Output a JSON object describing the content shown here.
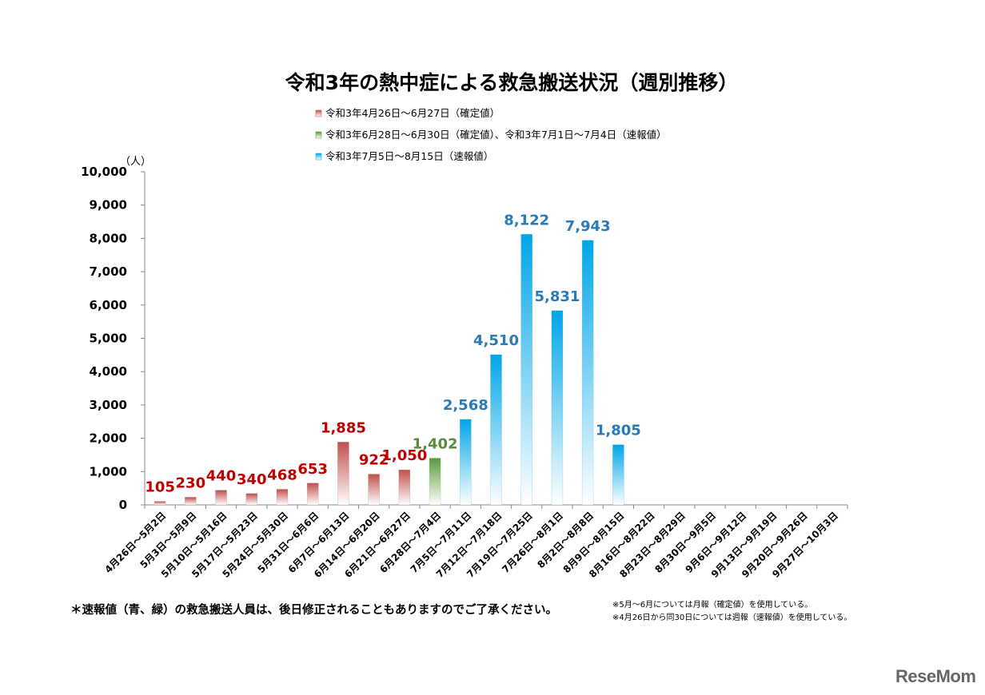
{
  "colors": {
    "kakutei": "#c0504d",
    "kakutei_label": "#c00000",
    "mixed": "#5a9a3a",
    "mixed_label": "#5a8a3a",
    "sokuhou": "#00a5e8",
    "sokuhou_label": "#2a7ab8"
  },
  "chart_data": {
    "type": "bar",
    "title": "令和3年の熱中症による救急搬送状況（週別推移）",
    "ylabel": "（人）",
    "ylim": [
      0,
      10000
    ],
    "yticks": [
      "0",
      "1,000",
      "2,000",
      "3,000",
      "4,000",
      "5,000",
      "6,000",
      "7,000",
      "8,000",
      "9,000",
      "10,000"
    ],
    "legend": [
      {
        "key": "kakutei",
        "label": "令和3年4月26日～6月27日（確定値）"
      },
      {
        "key": "mixed",
        "label": "令和3年6月28日～6月30日（確定値）、令和3年7月1日～7月4日（速報値）"
      },
      {
        "key": "sokuhou",
        "label": "令和3年7月5日～8月15日（速報値）"
      }
    ],
    "categories": [
      "4月26日～5月2日",
      "5月3日～5月9日",
      "5月10日～5月16日",
      "5月17日～5月23日",
      "5月24日～5月30日",
      "5月31日～6月6日",
      "6月7日～6月13日",
      "6月14日～6月20日",
      "6月21日～6月27日",
      "6月28日～7月4日",
      "7月5日～7月11日",
      "7月12日～7月18日",
      "7月19日～7月25日",
      "7月26日～8月1日",
      "8月2日～8月8日",
      "8月9日～8月15日",
      "8月16日～8月22日",
      "8月23日～8月29日",
      "8月30日～9月5日",
      "9月6日～9月12日",
      "9月13日～9月19日",
      "9月20日～9月26日",
      "9月27日～10月3日"
    ],
    "values": [
      105,
      230,
      440,
      340,
      468,
      653,
      1885,
      922,
      1050,
      1402,
      2568,
      4510,
      8122,
      5831,
      7943,
      1805,
      null,
      null,
      null,
      null,
      null,
      null,
      null
    ],
    "value_labels": [
      "105",
      "230",
      "440",
      "340",
      "468",
      "653",
      "1,885",
      "922",
      "1,050",
      "1,402",
      "2,568",
      "4,510",
      "8,122",
      "5,831",
      "7,943",
      "1,805",
      "",
      "",
      "",
      "",
      "",
      "",
      ""
    ],
    "series_key": [
      "kakutei",
      "kakutei",
      "kakutei",
      "kakutei",
      "kakutei",
      "kakutei",
      "kakutei",
      "kakutei",
      "kakutei",
      "mixed",
      "sokuhou",
      "sokuhou",
      "sokuhou",
      "sokuhou",
      "sokuhou",
      "sokuhou",
      "",
      "",
      "",
      "",
      "",
      "",
      ""
    ]
  },
  "notes": {
    "main": "＊速報値（青、緑）の救急搬送人員は、後日修正されることもありますのでご了承ください。",
    "note1": "※5月～6月については月報（確定値）を使用している。",
    "note2": "※4月26日から同30日については週報（速報値）を使用している。"
  },
  "logo": "ReseMom"
}
